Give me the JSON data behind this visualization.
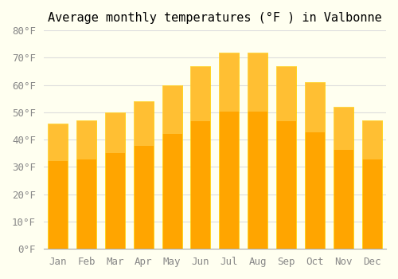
{
  "months": [
    "Jan",
    "Feb",
    "Mar",
    "Apr",
    "May",
    "Jun",
    "Jul",
    "Aug",
    "Sep",
    "Oct",
    "Nov",
    "Dec"
  ],
  "values": [
    46,
    47,
    50,
    54,
    60,
    67,
    72,
    72,
    67,
    61,
    52,
    47
  ],
  "bar_color": "#FFA500",
  "bar_edge_color": "#FFD700",
  "title": "Average monthly temperatures (°F ) in Valbonne",
  "ylim": [
    0,
    80
  ],
  "yticks": [
    0,
    10,
    20,
    30,
    40,
    50,
    60,
    70,
    80
  ],
  "ytick_labels": [
    "0°F",
    "10°F",
    "20°F",
    "30°F",
    "40°F",
    "50°F",
    "60°F",
    "70°F",
    "80°F"
  ],
  "background_color": "#FFFFF0",
  "grid_color": "#DDDDDD",
  "title_fontsize": 11,
  "tick_fontsize": 9,
  "font_family": "monospace"
}
